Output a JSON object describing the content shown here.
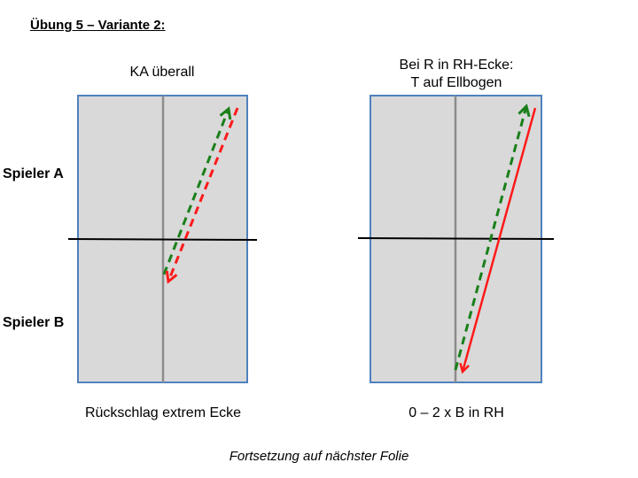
{
  "title": "Übung 5 – Variante 2:",
  "players": {
    "a": "Spieler A",
    "b": "Spieler B"
  },
  "diagrams": [
    {
      "title": "KA überall",
      "caption": "Rückschlag extrem Ecke"
    },
    {
      "title_line1": "Bei R in RH-Ecke:",
      "title_line2": "T auf Ellbogen",
      "caption": "0 – 2 x B in RH"
    }
  ],
  "footer": "Fortsetzung auf nächster Folie",
  "colors": {
    "table_fill": "#d9d9d9",
    "table_border": "#4f81bd",
    "center_line": "#8c8c8c",
    "net": "#000000",
    "green_arrow": "#1a7f1a",
    "red_arrow": "#ff1a1a"
  }
}
